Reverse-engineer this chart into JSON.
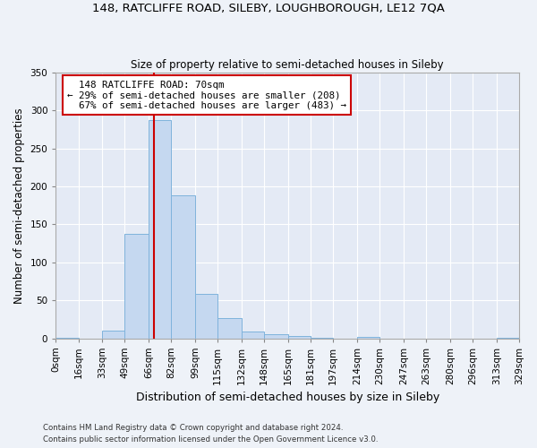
{
  "title1": "148, RATCLIFFE ROAD, SILEBY, LOUGHBOROUGH, LE12 7QA",
  "title2": "Size of property relative to semi-detached houses in Sileby",
  "xlabel": "Distribution of semi-detached houses by size in Sileby",
  "ylabel": "Number of semi-detached properties",
  "bin_edges": [
    0,
    16,
    33,
    49,
    66,
    82,
    99,
    115,
    132,
    148,
    165,
    181,
    197,
    214,
    230,
    247,
    263,
    280,
    296,
    313,
    329
  ],
  "bar_heights": [
    1,
    0,
    10,
    138,
    288,
    188,
    58,
    27,
    9,
    5,
    3,
    1,
    0,
    2,
    0,
    0,
    0,
    0,
    0,
    1
  ],
  "bar_color": "#c5d8f0",
  "bar_edge_color": "#7fb3dc",
  "property_size": 70,
  "property_label": "148 RATCLIFFE ROAD: 70sqm",
  "pct_smaller": 29,
  "n_smaller": 208,
  "pct_larger": 67,
  "n_larger": 483,
  "vline_color": "#cc0000",
  "annotation_box_color": "#cc0000",
  "ylim": [
    0,
    350
  ],
  "yticks": [
    0,
    50,
    100,
    150,
    200,
    250,
    300,
    350
  ],
  "tick_labels": [
    "0sqm",
    "16sqm",
    "33sqm",
    "49sqm",
    "66sqm",
    "82sqm",
    "99sqm",
    "115sqm",
    "132sqm",
    "148sqm",
    "165sqm",
    "181sqm",
    "197sqm",
    "214sqm",
    "230sqm",
    "247sqm",
    "263sqm",
    "280sqm",
    "296sqm",
    "313sqm",
    "329sqm"
  ],
  "footer1": "Contains HM Land Registry data © Crown copyright and database right 2024.",
  "footer2": "Contains public sector information licensed under the Open Government Licence v3.0.",
  "background_color": "#eef2f8",
  "plot_background": "#e4eaf5"
}
